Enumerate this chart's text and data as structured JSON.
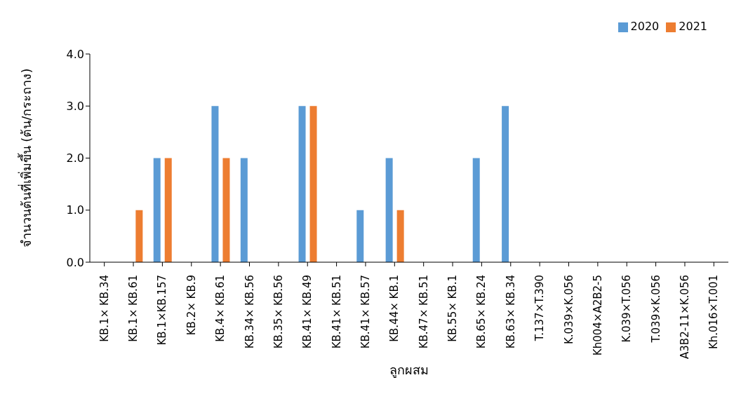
{
  "chart_data": {
    "type": "bar",
    "xlabel": "ลูกผสม",
    "ylabel": "จำนวนต้นที่เพิ่มขึ้น (ต้น/กระถาง)",
    "categories": [
      "KB.1× KB.34",
      "KB.1× KB.61",
      "KB.1×KB.157",
      "KB.2× KB.9",
      "KB.4× KB.61",
      "KB.34× KB.56",
      "KB.35× KB.56",
      "KB.41× KB.49",
      "KB.41× KB.51",
      "KB.41× KB.57",
      "KB.44× KB.1",
      "KB.47× KB.51",
      "KB.55× KB.1",
      "KB.65× KB.24",
      "KB.63× KB.34",
      "T.137×T.390",
      "K.039×K.056",
      "Kh004×A2B2-5",
      "K.039×T.056",
      "T.039×K.056",
      "A3B2-11×K.056",
      "Kh.016×T.001"
    ],
    "series": [
      {
        "name": "2020",
        "color": "#5b9bd5",
        "values": [
          0,
          0,
          2,
          0,
          3,
          2,
          0,
          3,
          0,
          1,
          2,
          0,
          0,
          2,
          3,
          0,
          0,
          0,
          0,
          0,
          0,
          0
        ]
      },
      {
        "name": "2021",
        "color": "#ed7d31",
        "values": [
          0,
          1,
          2,
          0,
          2,
          0,
          0,
          3,
          0,
          0,
          1,
          0,
          0,
          0,
          0,
          0,
          0,
          0,
          0,
          0,
          0,
          0
        ]
      }
    ],
    "ylim": [
      0,
      4
    ],
    "yticks": [
      {
        "value": 0,
        "label": "0.0"
      },
      {
        "value": 1,
        "label": "1.0"
      },
      {
        "value": 2,
        "label": "2.0"
      },
      {
        "value": 3,
        "label": "3.0"
      },
      {
        "value": 4,
        "label": "4.0"
      }
    ],
    "grid": false,
    "legend": "top right"
  }
}
